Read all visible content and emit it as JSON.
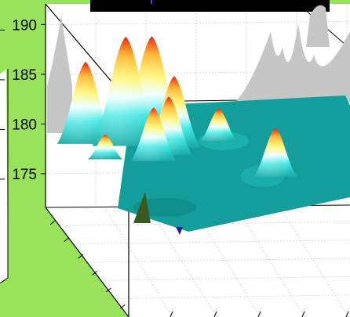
{
  "chart_data": {
    "type": "surface3d",
    "title": "",
    "xlabel": "",
    "ylabel": "",
    "zlabel": "",
    "z_ticks": [
      "175",
      "180",
      "185",
      "190"
    ],
    "zlim": [
      172,
      192
    ],
    "grid": true,
    "colormap": "jet",
    "base_level": 177.5,
    "peaks": [
      {
        "u": 0.05,
        "v": 0.16,
        "z": 187.5
      },
      {
        "u": 0.09,
        "v": 0.34,
        "z": 190.8
      },
      {
        "u": 0.06,
        "v": 0.48,
        "z": 190.4
      },
      {
        "u": 0.13,
        "v": 0.56,
        "z": 186.2
      },
      {
        "u": 0.21,
        "v": 0.5,
        "z": 184.6
      },
      {
        "u": 0.27,
        "v": 0.4,
        "z": 184.0
      },
      {
        "u": 0.23,
        "v": 0.18,
        "z": 180.5
      },
      {
        "u": 0.08,
        "v": 0.8,
        "z": 181.5
      },
      {
        "u": 0.5,
        "v": 0.9,
        "z": 183.4
      }
    ],
    "hidden_slices": 3
  },
  "colors": {
    "background": "#99e35a",
    "pane": "#ffffff",
    "gridline": "#cfcfcf",
    "shadow": "#c6c6c6",
    "base_surface": "#149e9b"
  }
}
